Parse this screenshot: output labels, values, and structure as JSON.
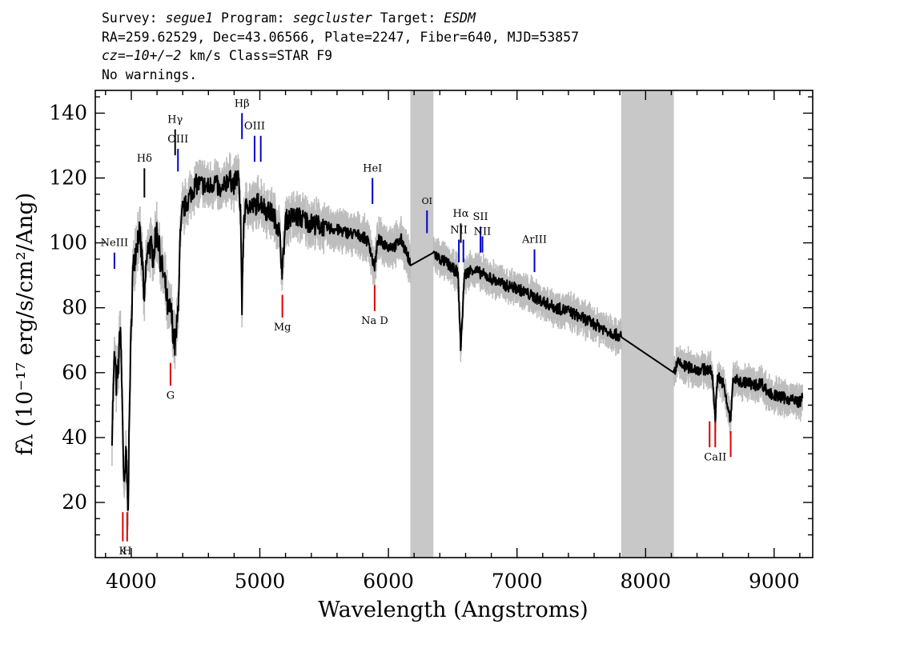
{
  "header": {
    "line1": {
      "survey_label": "Survey: ",
      "survey": "segue1",
      "program_label": " Program: ",
      "program": "segcluster",
      "target_label": " Target: ",
      "target": "ESDM"
    },
    "line2": "RA=259.62529, Dec=43.06566, Plate=2247, Fiber=640, MJD=53857",
    "line3": {
      "cz_label": "cz=",
      "cz_value": "−10+/−2",
      "cz_rest": " km/s Class=STAR F9"
    },
    "line4": "No warnings."
  },
  "chart_data": {
    "type": "line",
    "xlabel": "Wavelength (Angstroms)",
    "ylabel": "fλ (10⁻¹⁷ erg/s/cm²/Ang)",
    "xlim": [
      3720,
      9300
    ],
    "ylim": [
      3,
      147
    ],
    "x_ticks": [
      4000,
      5000,
      6000,
      7000,
      8000,
      9000
    ],
    "y_ticks": [
      20,
      40,
      60,
      80,
      100,
      120,
      140
    ],
    "grid": false,
    "masked_regions": [
      [
        6170,
        6350
      ],
      [
        7810,
        8220
      ]
    ],
    "series": [
      {
        "name": "flux",
        "color": "#000000",
        "x": [
          3850,
          3870,
          3885,
          3900,
          3915,
          3930,
          3945,
          3960,
          3975,
          3990,
          4010,
          4030,
          4060,
          4090,
          4101,
          4115,
          4140,
          4170,
          4200,
          4230,
          4260,
          4290,
          4305,
          4320,
          4340,
          4360,
          4380,
          4400,
          4430,
          4460,
          4500,
          4550,
          4600,
          4650,
          4700,
          4750,
          4800,
          4830,
          4850,
          4861,
          4875,
          4900,
          4950,
          5000,
          5050,
          5100,
          5150,
          5175,
          5200,
          5250,
          5300,
          5400,
          5500,
          5600,
          5700,
          5800,
          5850,
          5890,
          5920,
          5950,
          6000,
          6050,
          6100,
          6150,
          6170,
          6350,
          6400,
          6450,
          6500,
          6540,
          6563,
          6590,
          6650,
          6700,
          6800,
          6900,
          7000,
          7100,
          7200,
          7300,
          7400,
          7500,
          7600,
          7700,
          7810,
          8220,
          8250,
          8300,
          8400,
          8498,
          8520,
          8542,
          8560,
          8600,
          8662,
          8680,
          8750,
          8800,
          8850,
          8900,
          8950,
          9000,
          9100,
          9200,
          9220
        ],
        "y": [
          42,
          66,
          55,
          62,
          75,
          50,
          22,
          35,
          19,
          58,
          90,
          97,
          104,
          92,
          80,
          93,
          100,
          96,
          104,
          94,
          88,
          78,
          80,
          75,
          68,
          76,
          100,
          110,
          112,
          115,
          118,
          118,
          117,
          119,
          115,
          120,
          118,
          121,
          110,
          80,
          108,
          112,
          111,
          113,
          110,
          109,
          104,
          91,
          107,
          108,
          108,
          106,
          105,
          104,
          103,
          102,
          100,
          92,
          101,
          100,
          99,
          99,
          101,
          96,
          93,
          97,
          95,
          94,
          92,
          91,
          67,
          90,
          92,
          91,
          89,
          87,
          86,
          84,
          82,
          80,
          79,
          77,
          75,
          73,
          71,
          60,
          63,
          62,
          61,
          61,
          59,
          46,
          59,
          57,
          45,
          58,
          57,
          57,
          56,
          57,
          54,
          53,
          52,
          51,
          52
        ]
      }
    ],
    "lines": [
      {
        "name": "NeIII",
        "x": 3869,
        "color": "#0000cc",
        "y0": 92,
        "y1": 97,
        "ly": 99,
        "size": 13
      },
      {
        "name": "K",
        "x": 3934,
        "color": "#dd0000",
        "y0": 8,
        "y1": 17,
        "ly": 4,
        "size": 13
      },
      {
        "name": "H",
        "x": 3968,
        "color": "#dd0000",
        "y0": 8,
        "y1": 17,
        "ly": 4,
        "size": 13
      },
      {
        "name": "Hδ",
        "x": 4102,
        "color": "#000000",
        "y0": 114,
        "y1": 123,
        "ly": 125,
        "size": 13
      },
      {
        "name": "G",
        "x": 4305,
        "color": "#dd0000",
        "y0": 56,
        "y1": 63,
        "ly": 52,
        "size": 13
      },
      {
        "name": "Hγ",
        "x": 4341,
        "color": "#000000",
        "y0": 127,
        "y1": 135,
        "ly": 137,
        "size": 13
      },
      {
        "name": "OIII",
        "x": 4363,
        "color": "#0000cc",
        "y0": 122,
        "y1": 129,
        "ly": 131,
        "size": 13
      },
      {
        "name": "Hβ",
        "x": 4861,
        "color": "#0000cc",
        "y0": 132,
        "y1": 140,
        "ly": 142,
        "size": 13
      },
      {
        "name": "OIII",
        "x": 4959,
        "color": "#0000cc",
        "y0": 125,
        "y1": 133,
        "ly": 135,
        "size": 13
      },
      {
        "name": "",
        "x": 5007,
        "color": "#0000cc",
        "y0": 125,
        "y1": 133,
        "ly": 135,
        "size": 13
      },
      {
        "name": "Mg",
        "x": 5175,
        "color": "#dd0000",
        "y0": 77,
        "y1": 84,
        "ly": 73,
        "size": 13
      },
      {
        "name": "HeI",
        "x": 5876,
        "color": "#0000cc",
        "y0": 112,
        "y1": 120,
        "ly": 122,
        "size": 13
      },
      {
        "name": "Na D",
        "x": 5893,
        "color": "#dd0000",
        "y0": 79,
        "y1": 87,
        "ly": 75,
        "size": 13
      },
      {
        "name": "OI",
        "x": 6300,
        "color": "#0000cc",
        "y0": 103,
        "y1": 110,
        "ly": 112,
        "size": 11
      },
      {
        "name": "NII",
        "x": 6548,
        "color": "#0000cc",
        "y0": 94,
        "y1": 101,
        "ly": 103,
        "size": 13
      },
      {
        "name": "Hα",
        "x": 6563,
        "color": "#000000",
        "y0": 100,
        "y1": 106,
        "ly": 108,
        "size": 13
      },
      {
        "name": "",
        "x": 6583,
        "color": "#0000cc",
        "y0": 94,
        "y1": 101,
        "ly": 103,
        "size": 13
      },
      {
        "name": "SII",
        "x": 6716,
        "color": "#0000cc",
        "y0": 97,
        "y1": 105,
        "ly": 107,
        "size": 13
      },
      {
        "name": "NII",
        "x": 6731,
        "color": "#0000cc",
        "y0": 97,
        "y1": 102,
        "ly": 102.5,
        "size": 13
      },
      {
        "name": "ArIII",
        "x": 7136,
        "color": "#0000cc",
        "y0": 91,
        "y1": 98,
        "ly": 100,
        "size": 13
      },
      {
        "name": "",
        "x": 8498,
        "color": "#dd0000",
        "y0": 37,
        "y1": 45,
        "ly": 0,
        "size": 13
      },
      {
        "name": "CaII",
        "x": 8542,
        "color": "#dd0000",
        "y0": 37,
        "y1": 45,
        "ly": 33,
        "size": 13
      },
      {
        "name": "",
        "x": 8662,
        "color": "#dd0000",
        "y0": 34,
        "y1": 42,
        "ly": 0,
        "size": 13
      }
    ]
  }
}
